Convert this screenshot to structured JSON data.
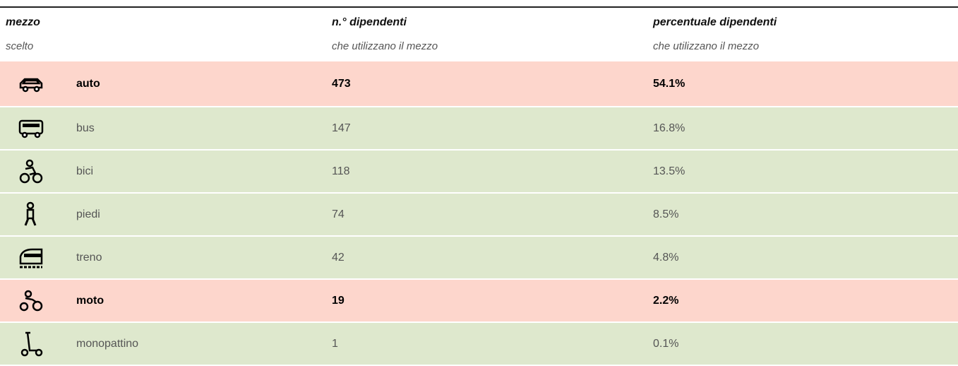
{
  "table": {
    "header": [
      {
        "title": "mezzo",
        "subtitle": "scelto"
      },
      {
        "title": "n.° dipendenti",
        "subtitle": "che utilizzano il mezzo"
      },
      {
        "title": "percentuale dipendenti",
        "subtitle": "che utilizzano il mezzo"
      }
    ],
    "rows": [
      {
        "mezzo": "auto",
        "dipendenti": "473",
        "percentuale": "54.1%",
        "color": "#fdd6cc",
        "bold": true
      },
      {
        "mezzo": "bus",
        "dipendenti": "147",
        "percentuale": "16.8%",
        "color": "#dee8cd",
        "bold": false
      },
      {
        "mezzo": "bici",
        "dipendenti": "118",
        "percentuale": "13.5%",
        "color": "#dee8cd",
        "bold": false
      },
      {
        "mezzo": "piedi",
        "dipendenti": "74",
        "percentuale": "8.5%",
        "color": "#dee8cd",
        "bold": false
      },
      {
        "mezzo": "treno",
        "dipendenti": "42",
        "percentuale": "4.8%",
        "color": "#dee8cd",
        "bold": false
      },
      {
        "mezzo": "moto",
        "dipendenti": "19",
        "percentuale": "2.2%",
        "color": "#fdd6cc",
        "bold": true
      },
      {
        "mezzo": "monopattino",
        "dipendenti": "1",
        "percentuale": "0.1%",
        "color": "#dee8cd",
        "bold": false
      }
    ]
  }
}
